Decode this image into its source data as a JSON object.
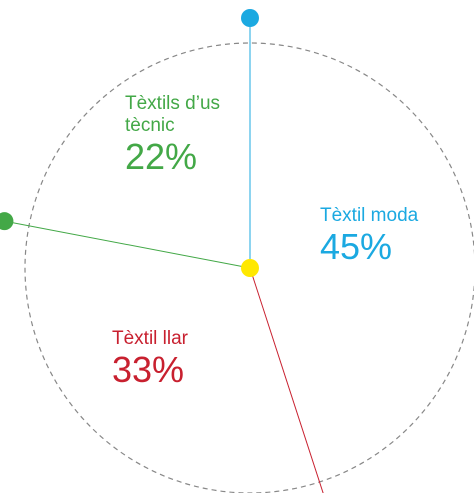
{
  "chart_data": {
    "type": "pie",
    "categories": [
      "Tèxtil moda",
      "Tèxtil llar",
      "Tèxtils d’us tècnic"
    ],
    "values": [
      45,
      33,
      22
    ],
    "value_labels": [
      "45%",
      "33%",
      "22%"
    ],
    "colors": [
      "#1ba9e1",
      "#c8202f",
      "#43a847"
    ]
  }
}
